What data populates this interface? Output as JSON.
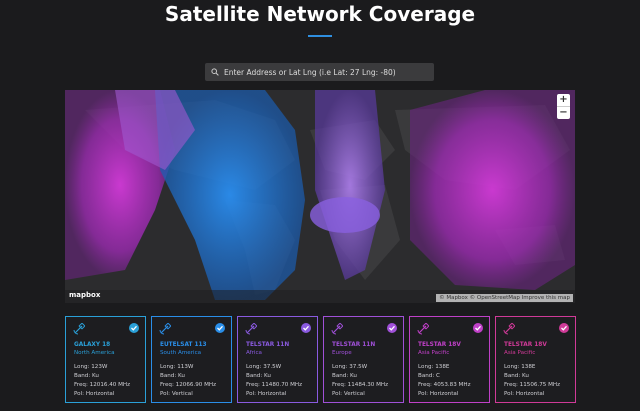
{
  "header": {
    "title": "Satellite Network Coverage"
  },
  "search": {
    "placeholder": "Enter Address or Lat Lng (i.e Lat: 27 Lng: -80)"
  },
  "map": {
    "zoom_in": "+",
    "zoom_out": "−",
    "logo": "mapbox",
    "attribution": "© Mapbox © OpenStreetMap Improve this map"
  },
  "satellites": [
    {
      "name": "GALAXY 18",
      "region": "North America",
      "lines": [
        "Long: 123W",
        "Band: Ku",
        "Freq: 12016.40 MHz",
        "Pol: Horizontal"
      ]
    },
    {
      "name": "EUTELSAT 113",
      "region": "South America",
      "lines": [
        "Long: 113W",
        "Band: Ku",
        "Freq: 12066.90 MHz",
        "Pol: Vertical"
      ]
    },
    {
      "name": "TELSTAR 11N",
      "region": "Africa",
      "lines": [
        "Long: 37.5W",
        "Band: Ku",
        "Freq: 11480.70 MHz",
        "Pol: Horizontal"
      ]
    },
    {
      "name": "TELSTAR 11N",
      "region": "Europe",
      "lines": [
        "Long: 37.5W",
        "Band: Ku",
        "Freq: 11484.30 MHz",
        "Pol: Vertical"
      ]
    },
    {
      "name": "TELSTAR 18V",
      "region": "Asia Pacific",
      "lines": [
        "Long: 138E",
        "Band: C",
        "Freq: 4053.83 MHz",
        "Pol: Horizontal"
      ]
    },
    {
      "name": "TELSTAR 18V",
      "region": "Asia Pacific",
      "lines": [
        "Long: 138E",
        "Band: Ku",
        "Freq: 11506.75 MHz",
        "Pol: Horizontal"
      ]
    }
  ]
}
